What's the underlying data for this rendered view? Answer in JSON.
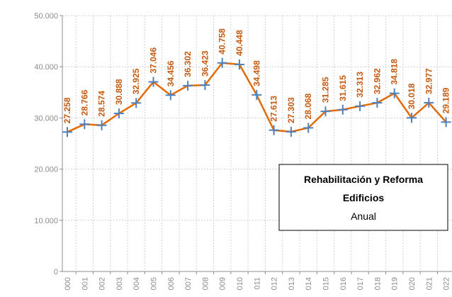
{
  "chart_data": {
    "type": "line",
    "categories": [
      "000",
      "001",
      "002",
      "003",
      "004",
      "005",
      "006",
      "007",
      "008",
      "009",
      "010",
      "011",
      "012",
      "013",
      "014",
      "015",
      "016",
      "017",
      "018",
      "019",
      "020",
      "021",
      "022"
    ],
    "series": [
      {
        "name": null,
        "color": "#e36c0a",
        "marker_color": "#4f81bd",
        "values": [
          27258,
          28766,
          28574,
          30888,
          32925,
          37046,
          34456,
          36302,
          36423,
          40758,
          40448,
          34498,
          27613,
          27303,
          28068,
          31285,
          31615,
          32313,
          32962,
          34818,
          30018,
          32977,
          29189
        ],
        "value_labels": [
          "27.258",
          "28.766",
          "28.574",
          "30.888",
          "32.925",
          "37.046",
          "34.456",
          "36.302",
          "36.423",
          "40.758",
          "40.448",
          "34.498",
          "27.613",
          "27.303",
          "28.068",
          "31.285",
          "31.615",
          "32.313",
          "32.962",
          "34.818",
          "30.018",
          "32.977",
          "29.189"
        ]
      }
    ],
    "ylim": [
      0,
      50000
    ],
    "yticks": [
      0,
      {
        "value": 10000,
        "label": "10.000"
      },
      {
        "value": 20000,
        "label": "20.000"
      },
      {
        "value": 30000,
        "label": "30.000"
      },
      {
        "value": 40000,
        "label": "40.000"
      },
      {
        "value": 50000,
        "label": "50.000"
      }
    ],
    "grid": true,
    "annotation": {
      "lines": [
        "Rehabilitación y Reforma",
        "Edificios",
        "Anual"
      ]
    }
  }
}
